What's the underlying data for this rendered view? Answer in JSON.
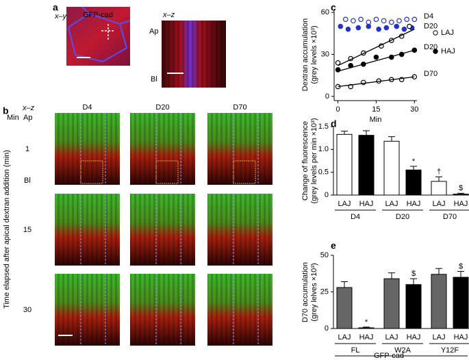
{
  "panel_a": {
    "label": "a",
    "xy_label": "x–y",
    "title": "GFP-cad",
    "xz_label": "x–z",
    "ap": "Ap",
    "bl": "Bl"
  },
  "panel_b": {
    "label": "b",
    "xz_label": "x–z",
    "min_label": "Min",
    "ap": "Ap",
    "bl": "Bl",
    "columns": [
      "D4",
      "D20",
      "D70"
    ],
    "rows": [
      "1",
      "15",
      "30"
    ],
    "ylabel": "Time elapsed after apical dextran addition (min)"
  },
  "chart_data": [
    {
      "type": "scatter",
      "label": "c",
      "ylabel": "Dextran accumulation",
      "ylabel2": "(grey levels ×10³)",
      "xlabel": "Min",
      "xlim": [
        -1.5,
        31
      ],
      "xticks": [
        0,
        15,
        30
      ],
      "ylim": [
        -3,
        62
      ],
      "yticks": [
        0,
        30,
        60
      ],
      "fit_x": [
        0,
        30
      ],
      "legend": [
        {
          "label": "LAJ",
          "filled": false
        },
        {
          "label": "HAJ",
          "filled": true
        }
      ],
      "series": [
        {
          "name": "D4",
          "color": "#2233cc",
          "legend": 0,
          "x": [
            3,
            6,
            9,
            12,
            15,
            18,
            21,
            24,
            27,
            30
          ],
          "values": [
            55,
            54,
            55,
            53,
            55,
            54,
            53,
            54,
            55,
            55
          ]
        },
        {
          "color": "#2233cc",
          "legend": 1,
          "x": [
            1,
            4,
            8,
            12,
            16,
            19,
            23,
            26,
            29
          ],
          "values": [
            50,
            48,
            49,
            50,
            48,
            49,
            50,
            48,
            49
          ]
        },
        {
          "name": "D20",
          "color": "#000000",
          "legend": 0,
          "x": [
            0,
            5,
            10,
            17,
            21,
            25,
            28
          ],
          "values": [
            24,
            27,
            31,
            36,
            40,
            43,
            50
          ],
          "fit": [
            22,
            48
          ]
        },
        {
          "name": "D20",
          "color": "#000000",
          "legend": 1,
          "x": [
            0,
            5,
            10,
            15,
            21,
            25,
            30
          ],
          "values": [
            19,
            22,
            23,
            28,
            28,
            30,
            33
          ],
          "fit": [
            18,
            33
          ]
        },
        {
          "name": "D70",
          "color": "#000000",
          "legend": 0,
          "x": [
            0,
            5,
            10,
            16,
            21,
            25,
            30
          ],
          "values": [
            7,
            7,
            10,
            11,
            12,
            12,
            14
          ],
          "fit": [
            7,
            14
          ]
        }
      ]
    },
    {
      "type": "bar",
      "label": "d",
      "ylabel": "Change of fluorescence",
      "ylabel2": "(grey levels per min ×10³)",
      "ylim": [
        0,
        1.5
      ],
      "yticks": [
        0,
        0.5,
        {
          "value": 1,
          "label": "1.0"
        },
        1.5
      ],
      "categories": [
        "LAJ",
        "HAJ",
        "LAJ",
        "HAJ",
        "LAJ",
        "HAJ"
      ],
      "groups": [
        "D4",
        "D20",
        "D70"
      ],
      "values": [
        1.33,
        1.31,
        1.18,
        0.55,
        0.3,
        0.02
      ],
      "errors": [
        0.07,
        0.1,
        0.1,
        0.08,
        0.1,
        0.02
      ],
      "colors": [
        "#ffffff",
        "#000000",
        "#ffffff",
        "#000000",
        "#ffffff",
        "#000000"
      ],
      "annotations": [
        {
          "bar": 3,
          "text": "*"
        },
        {
          "bar": 4,
          "text": "†"
        },
        {
          "bar": 5,
          "text": "$"
        }
      ]
    },
    {
      "type": "bar",
      "label": "e",
      "ylabel": "D70 accumulation",
      "ylabel2": "(grey lelves ×10³)",
      "ylim": [
        0,
        50
      ],
      "yticks": [
        0,
        25,
        50
      ],
      "categories": [
        "LAJ",
        "HAJ",
        "LAJ",
        "HAJ",
        "LAJ",
        "HAJ"
      ],
      "groups": [
        "FL",
        "W2A",
        "Y12F"
      ],
      "supergroup": "GFP-cad",
      "values": [
        28,
        0.5,
        34,
        30,
        37,
        35
      ],
      "errors": [
        4,
        0.5,
        4,
        4,
        4,
        4
      ],
      "colors": [
        "#666666",
        "#000000",
        "#666666",
        "#000000",
        "#666666",
        "#000000"
      ],
      "annotations": [
        {
          "bar": 1,
          "text": "*"
        },
        {
          "bar": 3,
          "text": "$"
        },
        {
          "bar": 5,
          "text": "$"
        }
      ]
    }
  ]
}
